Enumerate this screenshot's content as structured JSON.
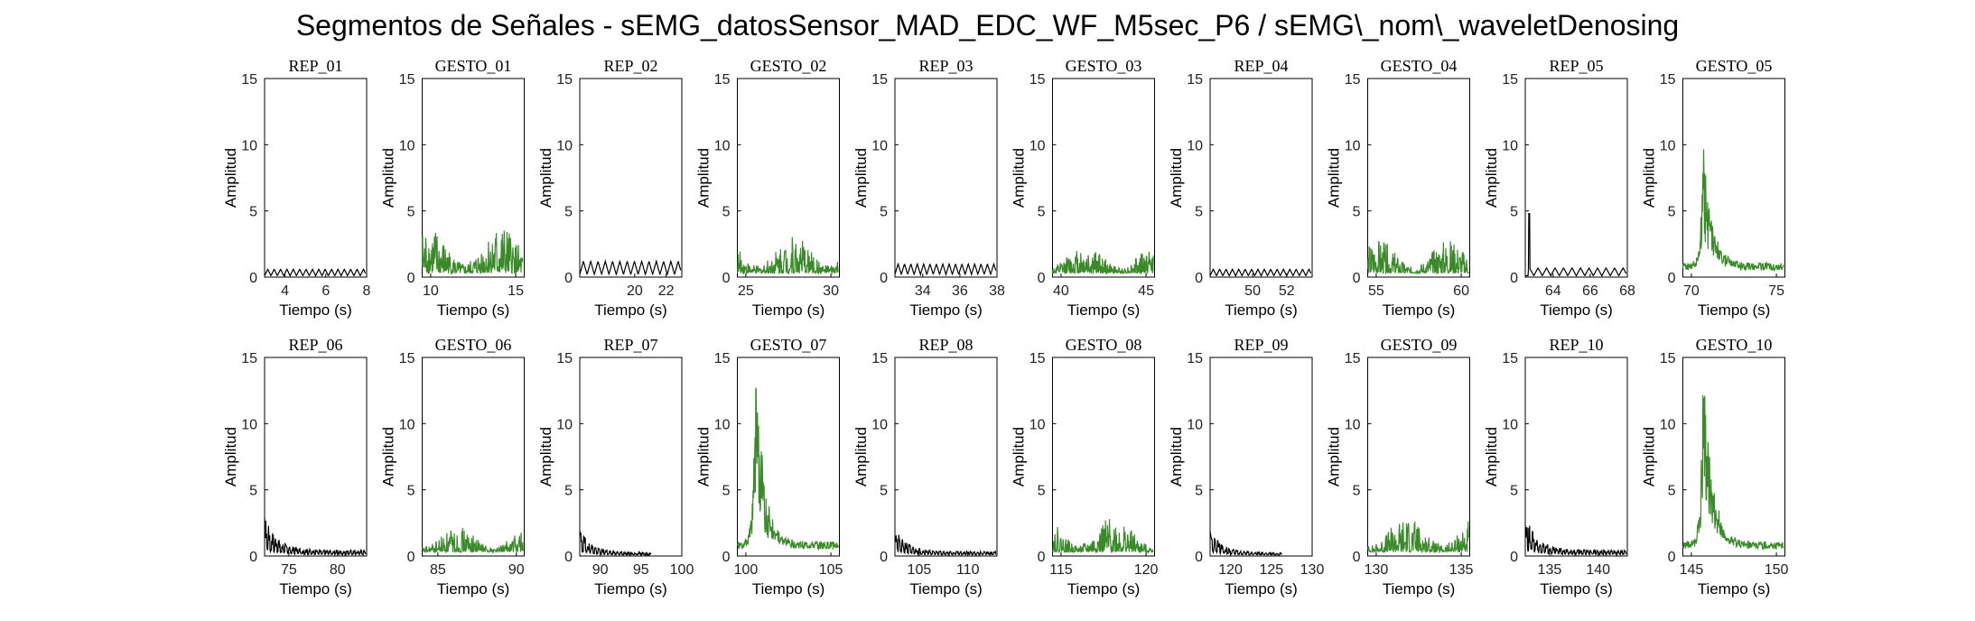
{
  "title": "Segmentos de Señales - sEMG_datosSensor_MAD_EDC_WF_M5sec_P6 / sEMG\\_nom\\_waveletDenosing",
  "colors": {
    "rep": "#000000",
    "gesto": "#3a8a2a",
    "axes": "#000000"
  },
  "chart_data": [
    {
      "type": "line",
      "title": "REP_01",
      "xlabel": "Tiempo (s)",
      "ylabel": "Amplitud",
      "xlim": [
        3,
        8
      ],
      "ylim": [
        0,
        15
      ],
      "xticks": [
        4,
        6,
        8
      ],
      "yticks": [
        0,
        5,
        10,
        15
      ],
      "color": "rep",
      "pattern": "osc",
      "peak": 0.6,
      "base": 0.1,
      "osc_count": 16
    },
    {
      "type": "line",
      "title": "GESTO_01",
      "xlabel": "Tiempo (s)",
      "ylabel": "Amplitud",
      "xlim": [
        9.5,
        15.5
      ],
      "ylim": [
        0,
        15
      ],
      "xticks": [
        10,
        15
      ],
      "yticks": [
        0,
        5,
        10,
        15
      ],
      "color": "gesto",
      "pattern": "noise",
      "peak": 4.0,
      "base": 0.3
    },
    {
      "type": "line",
      "title": "REP_02",
      "xlabel": "Tiempo (s)",
      "ylabel": "Amplitud",
      "xlim": [
        16.5,
        23
      ],
      "ylim": [
        0,
        15
      ],
      "xticks": [
        20,
        22
      ],
      "yticks": [
        0,
        5,
        10,
        15
      ],
      "color": "rep",
      "pattern": "osc",
      "peak": 1.2,
      "base": 0.2,
      "osc_count": 14
    },
    {
      "type": "line",
      "title": "GESTO_02",
      "xlabel": "Tiempo (s)",
      "ylabel": "Amplitud",
      "xlim": [
        24.5,
        30.5
      ],
      "ylim": [
        0,
        15
      ],
      "xticks": [
        25,
        30
      ],
      "yticks": [
        0,
        5,
        10,
        15
      ],
      "color": "gesto",
      "pattern": "noise",
      "peak": 3.2,
      "base": 0.3
    },
    {
      "type": "line",
      "title": "REP_03",
      "xlabel": "Tiempo (s)",
      "ylabel": "Amplitud",
      "xlim": [
        32.5,
        38
      ],
      "ylim": [
        0,
        15
      ],
      "xticks": [
        34,
        36,
        38
      ],
      "yticks": [
        0,
        5,
        10,
        15
      ],
      "color": "rep",
      "pattern": "osc",
      "peak": 1.0,
      "base": 0.2,
      "osc_count": 16
    },
    {
      "type": "line",
      "title": "GESTO_03",
      "xlabel": "Tiempo (s)",
      "ylabel": "Amplitud",
      "xlim": [
        39.5,
        45.5
      ],
      "ylim": [
        0,
        15
      ],
      "xticks": [
        40,
        45
      ],
      "yticks": [
        0,
        5,
        10,
        15
      ],
      "color": "gesto",
      "pattern": "noise",
      "peak": 2.5,
      "base": 0.3
    },
    {
      "type": "line",
      "title": "REP_04",
      "xlabel": "Tiempo (s)",
      "ylabel": "Amplitud",
      "xlim": [
        47.5,
        53.5
      ],
      "ylim": [
        0,
        15
      ],
      "xticks": [
        50,
        52
      ],
      "yticks": [
        0,
        5,
        10,
        15
      ],
      "color": "rep",
      "pattern": "osc",
      "peak": 0.6,
      "base": 0.1,
      "osc_count": 16
    },
    {
      "type": "line",
      "title": "GESTO_04",
      "xlabel": "Tiempo (s)",
      "ylabel": "Amplitud",
      "xlim": [
        54.5,
        60.5
      ],
      "ylim": [
        0,
        15
      ],
      "xticks": [
        55,
        60
      ],
      "yticks": [
        0,
        5,
        10,
        15
      ],
      "color": "gesto",
      "pattern": "noise",
      "peak": 2.8,
      "base": 0.3
    },
    {
      "type": "line",
      "title": "REP_05",
      "xlabel": "Tiempo (s)",
      "ylabel": "Amplitud",
      "xlim": [
        62.5,
        68
      ],
      "ylim": [
        0,
        15
      ],
      "xticks": [
        64,
        66,
        68
      ],
      "yticks": [
        0,
        5,
        10,
        15
      ],
      "color": "rep",
      "pattern": "osc_spike",
      "peak": 0.7,
      "base": 0.1,
      "osc_count": 12,
      "spike": 4.8
    },
    {
      "type": "line",
      "title": "GESTO_05",
      "xlabel": "Tiempo (s)",
      "ylabel": "Amplitud",
      "xlim": [
        69.5,
        75.5
      ],
      "ylim": [
        0,
        15
      ],
      "xticks": [
        70,
        75
      ],
      "yticks": [
        0,
        5,
        10,
        15
      ],
      "color": "gesto",
      "pattern": "burst",
      "peak": 9.8,
      "base": 0.5,
      "burst_at": 0.2
    },
    {
      "type": "line",
      "title": "REP_06",
      "xlabel": "Tiempo (s)",
      "ylabel": "Amplitud",
      "xlim": [
        72.5,
        83
      ],
      "ylim": [
        0,
        15
      ],
      "xticks": [
        75,
        80
      ],
      "yticks": [
        0,
        5,
        10,
        15
      ],
      "color": "rep",
      "pattern": "decay",
      "peak": 3.0,
      "base": 0.4,
      "osc_count": 30
    },
    {
      "type": "line",
      "title": "GESTO_06",
      "xlabel": "Tiempo (s)",
      "ylabel": "Amplitud",
      "xlim": [
        84,
        90.5
      ],
      "ylim": [
        0,
        15
      ],
      "xticks": [
        85,
        90
      ],
      "yticks": [
        0,
        5,
        10,
        15
      ],
      "color": "gesto",
      "pattern": "noise",
      "peak": 2.2,
      "base": 0.3
    },
    {
      "type": "line",
      "title": "REP_07",
      "xlabel": "Tiempo (s)",
      "ylabel": "Amplitud",
      "xlim": [
        87.5,
        100
      ],
      "ylim": [
        0,
        15
      ],
      "xticks": [
        90,
        95,
        100
      ],
      "yticks": [
        0,
        5,
        10,
        15
      ],
      "color": "rep",
      "pattern": "decay",
      "peak": 2.0,
      "base": 0.2,
      "osc_count": 28,
      "end_frac": 0.7
    },
    {
      "type": "line",
      "title": "GESTO_07",
      "xlabel": "Tiempo (s)",
      "ylabel": "Amplitud",
      "xlim": [
        99.5,
        105.5
      ],
      "ylim": [
        0,
        15
      ],
      "xticks": [
        100,
        105
      ],
      "yticks": [
        0,
        5,
        10,
        15
      ],
      "color": "gesto",
      "pattern": "burst",
      "peak": 14.0,
      "base": 0.5,
      "burst_at": 0.18
    },
    {
      "type": "line",
      "title": "REP_08",
      "xlabel": "Tiempo (s)",
      "ylabel": "Amplitud",
      "xlim": [
        102.5,
        113
      ],
      "ylim": [
        0,
        15
      ],
      "xticks": [
        105,
        110
      ],
      "yticks": [
        0,
        5,
        10,
        15
      ],
      "color": "rep",
      "pattern": "decay",
      "peak": 2.0,
      "base": 0.3,
      "osc_count": 30
    },
    {
      "type": "line",
      "title": "GESTO_08",
      "xlabel": "Tiempo (s)",
      "ylabel": "Amplitud",
      "xlim": [
        114.5,
        120.5
      ],
      "ylim": [
        0,
        15
      ],
      "xticks": [
        115,
        120
      ],
      "yticks": [
        0,
        5,
        10,
        15
      ],
      "color": "gesto",
      "pattern": "noise",
      "peak": 3.0,
      "base": 0.3
    },
    {
      "type": "line",
      "title": "REP_09",
      "xlabel": "Tiempo (s)",
      "ylabel": "Amplitud",
      "xlim": [
        117.5,
        130
      ],
      "ylim": [
        0,
        15
      ],
      "xticks": [
        120,
        125,
        130
      ],
      "yticks": [
        0,
        5,
        10,
        15
      ],
      "color": "rep",
      "pattern": "decay",
      "peak": 1.9,
      "base": 0.2,
      "osc_count": 28,
      "end_frac": 0.7
    },
    {
      "type": "line",
      "title": "GESTO_09",
      "xlabel": "Tiempo (s)",
      "ylabel": "Amplitud",
      "xlim": [
        129.5,
        135.5
      ],
      "ylim": [
        0,
        15
      ],
      "xticks": [
        130,
        135
      ],
      "yticks": [
        0,
        5,
        10,
        15
      ],
      "color": "gesto",
      "pattern": "noise",
      "peak": 3.0,
      "base": 0.3
    },
    {
      "type": "line",
      "title": "REP_10",
      "xlabel": "Tiempo (s)",
      "ylabel": "Amplitud",
      "xlim": [
        132.5,
        143
      ],
      "ylim": [
        0,
        15
      ],
      "xticks": [
        135,
        140
      ],
      "yticks": [
        0,
        5,
        10,
        15
      ],
      "color": "rep",
      "pattern": "decay",
      "peak": 3.0,
      "base": 0.4,
      "osc_count": 30
    },
    {
      "type": "line",
      "title": "GESTO_10",
      "xlabel": "Tiempo (s)",
      "ylabel": "Amplitud",
      "xlim": [
        144.5,
        150.5
      ],
      "ylim": [
        0,
        15
      ],
      "xticks": [
        145,
        150
      ],
      "yticks": [
        0,
        5,
        10,
        15
      ],
      "color": "gesto",
      "pattern": "burst",
      "peak": 15.0,
      "base": 0.5,
      "burst_at": 0.2
    }
  ]
}
